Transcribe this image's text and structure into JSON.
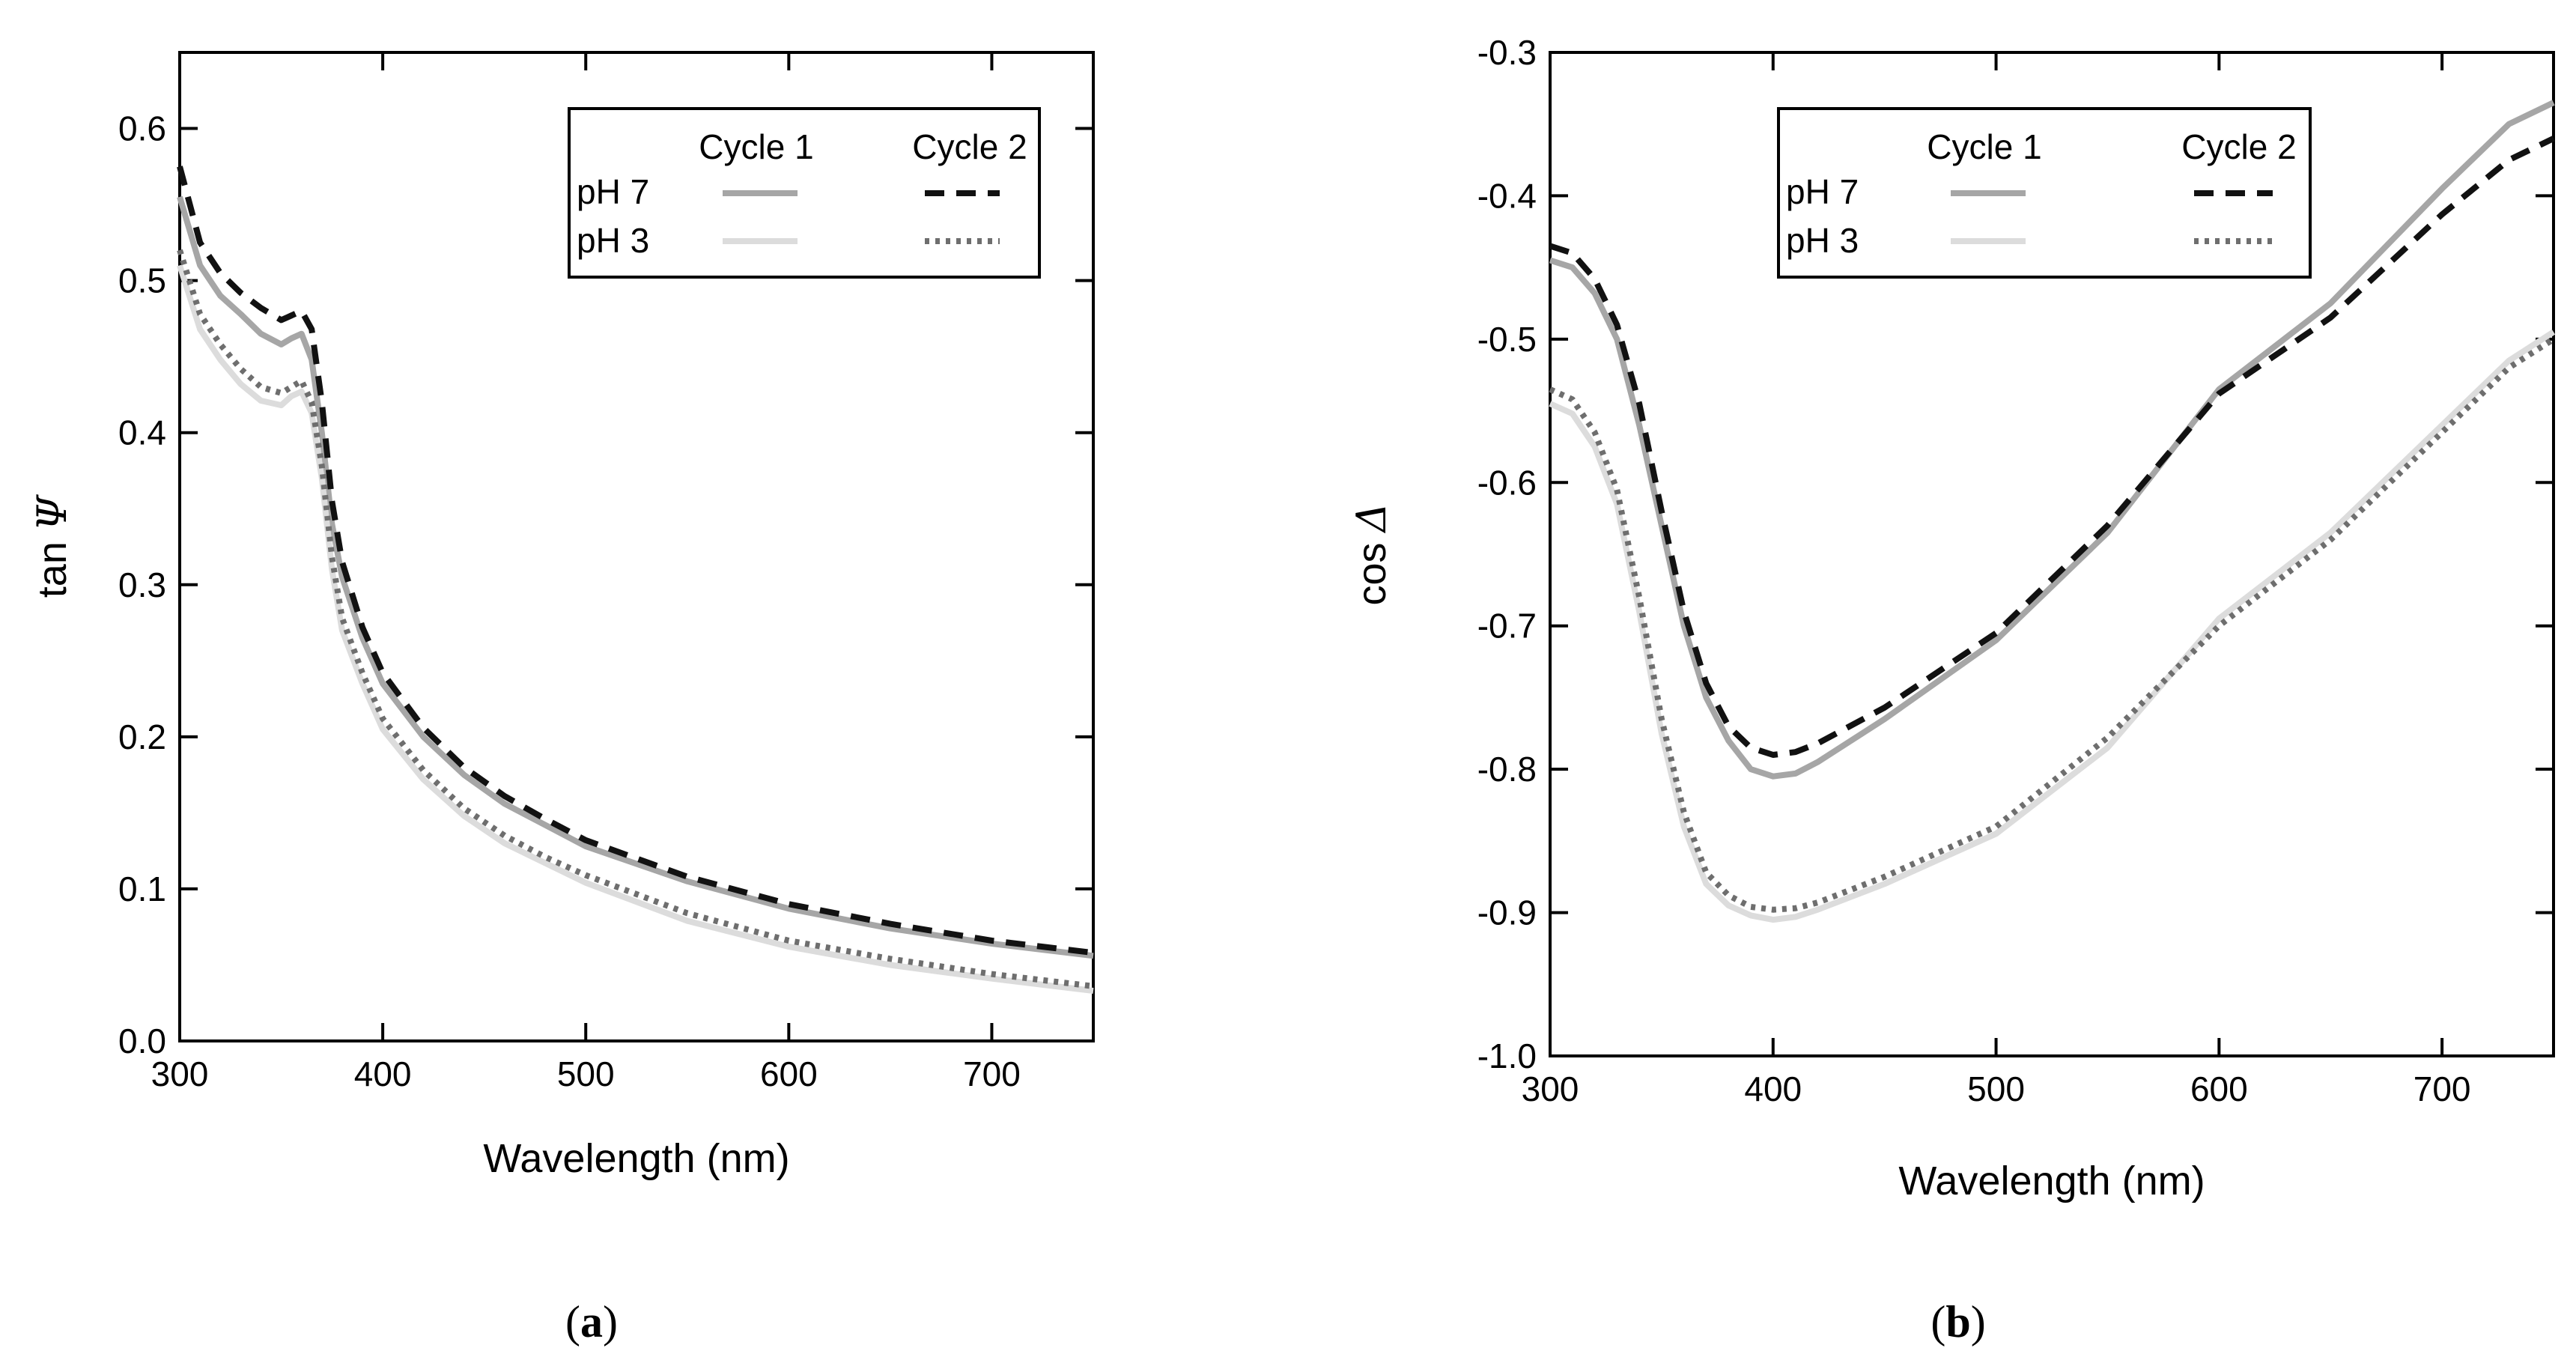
{
  "chart_data": [
    {
      "type": "line",
      "panel_label": "a",
      "xlabel": "Wavelength (nm)",
      "ylabel_text": "tan",
      "ylabel_symbol": "Ψ",
      "xlim": [
        300,
        750
      ],
      "ylim": [
        0.0,
        0.65
      ],
      "xticks": [
        300,
        400,
        500,
        600,
        700
      ],
      "yticks": [
        0.0,
        0.1,
        0.2,
        0.3,
        0.4,
        0.5,
        0.6
      ],
      "ytick_labels": [
        "0.0",
        "0.1",
        "0.2",
        "0.3",
        "0.4",
        "0.5",
        "0.6"
      ],
      "legend": {
        "placement": "top-right",
        "col_headers": [
          "Cycle 1",
          "Cycle 2"
        ],
        "row_labels": [
          "pH 7",
          "pH 3"
        ]
      },
      "x": [
        300,
        310,
        320,
        330,
        340,
        350,
        355,
        360,
        365,
        370,
        375,
        380,
        390,
        400,
        420,
        440,
        460,
        480,
        500,
        550,
        600,
        650,
        700,
        750
      ],
      "series": [
        {
          "name": "pH 7 Cycle 1",
          "color": "#a6a6a6",
          "dash": "solid",
          "values": [
            0.555,
            0.51,
            0.49,
            0.478,
            0.465,
            0.458,
            0.462,
            0.465,
            0.448,
            0.4,
            0.34,
            0.305,
            0.265,
            0.235,
            0.2,
            0.175,
            0.156,
            0.142,
            0.128,
            0.105,
            0.087,
            0.074,
            0.064,
            0.056
          ]
        },
        {
          "name": "pH 7 Cycle 2",
          "color": "#111111",
          "dash": "long",
          "values": [
            0.575,
            0.525,
            0.505,
            0.492,
            0.482,
            0.474,
            0.477,
            0.48,
            0.468,
            0.42,
            0.355,
            0.315,
            0.272,
            0.242,
            0.206,
            0.18,
            0.161,
            0.146,
            0.132,
            0.108,
            0.09,
            0.077,
            0.066,
            0.058
          ]
        },
        {
          "name": "pH 3 Cycle 1",
          "color": "#dcdcdc",
          "dash": "solid",
          "values": [
            0.51,
            0.468,
            0.448,
            0.432,
            0.421,
            0.418,
            0.424,
            0.427,
            0.413,
            0.37,
            0.31,
            0.27,
            0.235,
            0.205,
            0.172,
            0.148,
            0.13,
            0.117,
            0.104,
            0.079,
            0.062,
            0.05,
            0.041,
            0.033
          ]
        },
        {
          "name": "pH 3 Cycle 2",
          "color": "#6e6e6e",
          "dash": "dotted",
          "values": [
            0.52,
            0.478,
            0.458,
            0.442,
            0.43,
            0.426,
            0.43,
            0.434,
            0.42,
            0.378,
            0.318,
            0.278,
            0.242,
            0.212,
            0.178,
            0.153,
            0.135,
            0.121,
            0.109,
            0.084,
            0.066,
            0.054,
            0.044,
            0.036
          ]
        }
      ]
    },
    {
      "type": "line",
      "panel_label": "b",
      "xlabel": "Wavelength (nm)",
      "ylabel_text": "cos",
      "ylabel_symbol": "Δ",
      "xlim": [
        300,
        750
      ],
      "ylim": [
        -1.0,
        -0.3
      ],
      "xticks": [
        300,
        400,
        500,
        600,
        700
      ],
      "yticks": [
        -1.0,
        -0.9,
        -0.8,
        -0.7,
        -0.6,
        -0.5,
        -0.4,
        -0.3
      ],
      "ytick_labels": [
        "-1.0",
        "-0.9",
        "-0.8",
        "-0.7",
        "-0.6",
        "-0.5",
        "-0.4",
        "-0.3"
      ],
      "legend": {
        "placement": "top-right",
        "col_headers": [
          "Cycle 1",
          "Cycle 2"
        ],
        "row_labels": [
          "pH 7",
          "pH 3"
        ]
      },
      "x": [
        300,
        310,
        320,
        330,
        340,
        350,
        360,
        370,
        380,
        390,
        400,
        410,
        420,
        450,
        500,
        550,
        600,
        650,
        700,
        730,
        750
      ],
      "series": [
        {
          "name": "pH 7 Cycle 1",
          "color": "#a6a6a6",
          "dash": "solid",
          "values": [
            -0.445,
            -0.45,
            -0.468,
            -0.5,
            -0.56,
            -0.63,
            -0.7,
            -0.75,
            -0.78,
            -0.8,
            -0.805,
            -0.803,
            -0.795,
            -0.765,
            -0.71,
            -0.635,
            -0.535,
            -0.475,
            -0.395,
            -0.35,
            -0.335
          ]
        },
        {
          "name": "pH 7 Cycle 2",
          "color": "#111111",
          "dash": "long",
          "values": [
            -0.435,
            -0.44,
            -0.458,
            -0.49,
            -0.545,
            -0.62,
            -0.69,
            -0.74,
            -0.77,
            -0.785,
            -0.79,
            -0.788,
            -0.782,
            -0.757,
            -0.705,
            -0.63,
            -0.538,
            -0.485,
            -0.413,
            -0.375,
            -0.36
          ]
        },
        {
          "name": "pH 3 Cycle 1",
          "color": "#dcdcdc",
          "dash": "solid",
          "values": [
            -0.545,
            -0.552,
            -0.575,
            -0.615,
            -0.69,
            -0.775,
            -0.84,
            -0.88,
            -0.895,
            -0.902,
            -0.905,
            -0.903,
            -0.898,
            -0.88,
            -0.845,
            -0.785,
            -0.695,
            -0.635,
            -0.56,
            -0.515,
            -0.495
          ]
        },
        {
          "name": "pH 3 Cycle 2",
          "color": "#6e6e6e",
          "dash": "dotted",
          "values": [
            -0.535,
            -0.542,
            -0.565,
            -0.605,
            -0.68,
            -0.765,
            -0.83,
            -0.872,
            -0.888,
            -0.896,
            -0.898,
            -0.897,
            -0.893,
            -0.875,
            -0.84,
            -0.778,
            -0.7,
            -0.64,
            -0.565,
            -0.52,
            -0.5
          ]
        }
      ]
    }
  ]
}
